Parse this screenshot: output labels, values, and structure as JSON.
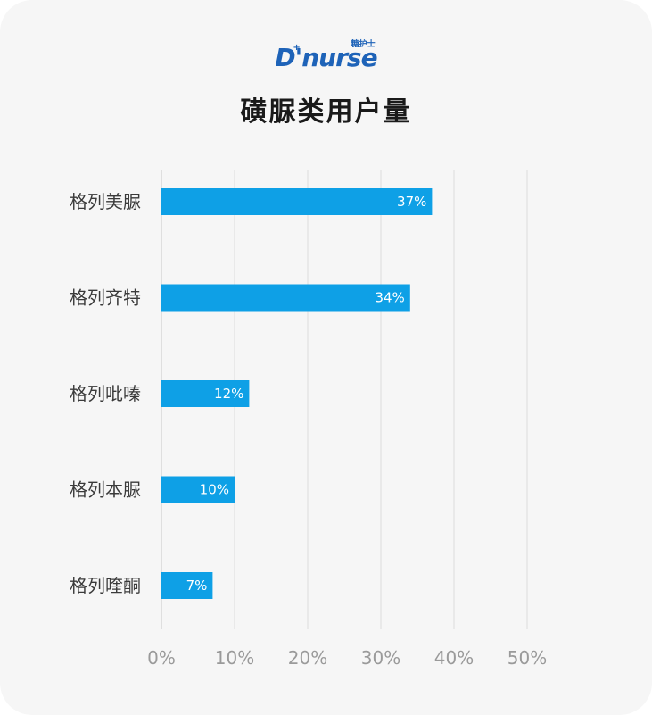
{
  "logo": {
    "text": "D'nurse",
    "cn": "糖护士",
    "cross": "+"
  },
  "title": "磺脲类用户量",
  "colors": {
    "bar": "#0ea0e6",
    "grid": "#dcdcdc",
    "background": "#f6f6f6"
  },
  "chart_data": {
    "type": "bar",
    "orientation": "horizontal",
    "title": "磺脲类用户量",
    "categories": [
      "格列美脲",
      "格列齐特",
      "格列吡嗪",
      "格列本脲",
      "格列喹酮"
    ],
    "values": [
      37,
      34,
      12,
      10,
      7
    ],
    "value_labels": [
      "37%",
      "34%",
      "12%",
      "10%",
      "7%"
    ],
    "xlim": [
      0,
      50
    ],
    "x_ticks": [
      "0%",
      "10%",
      "20%",
      "30%",
      "40%",
      "50%"
    ],
    "xlabel": "",
    "ylabel": "",
    "grid": "vertical"
  }
}
